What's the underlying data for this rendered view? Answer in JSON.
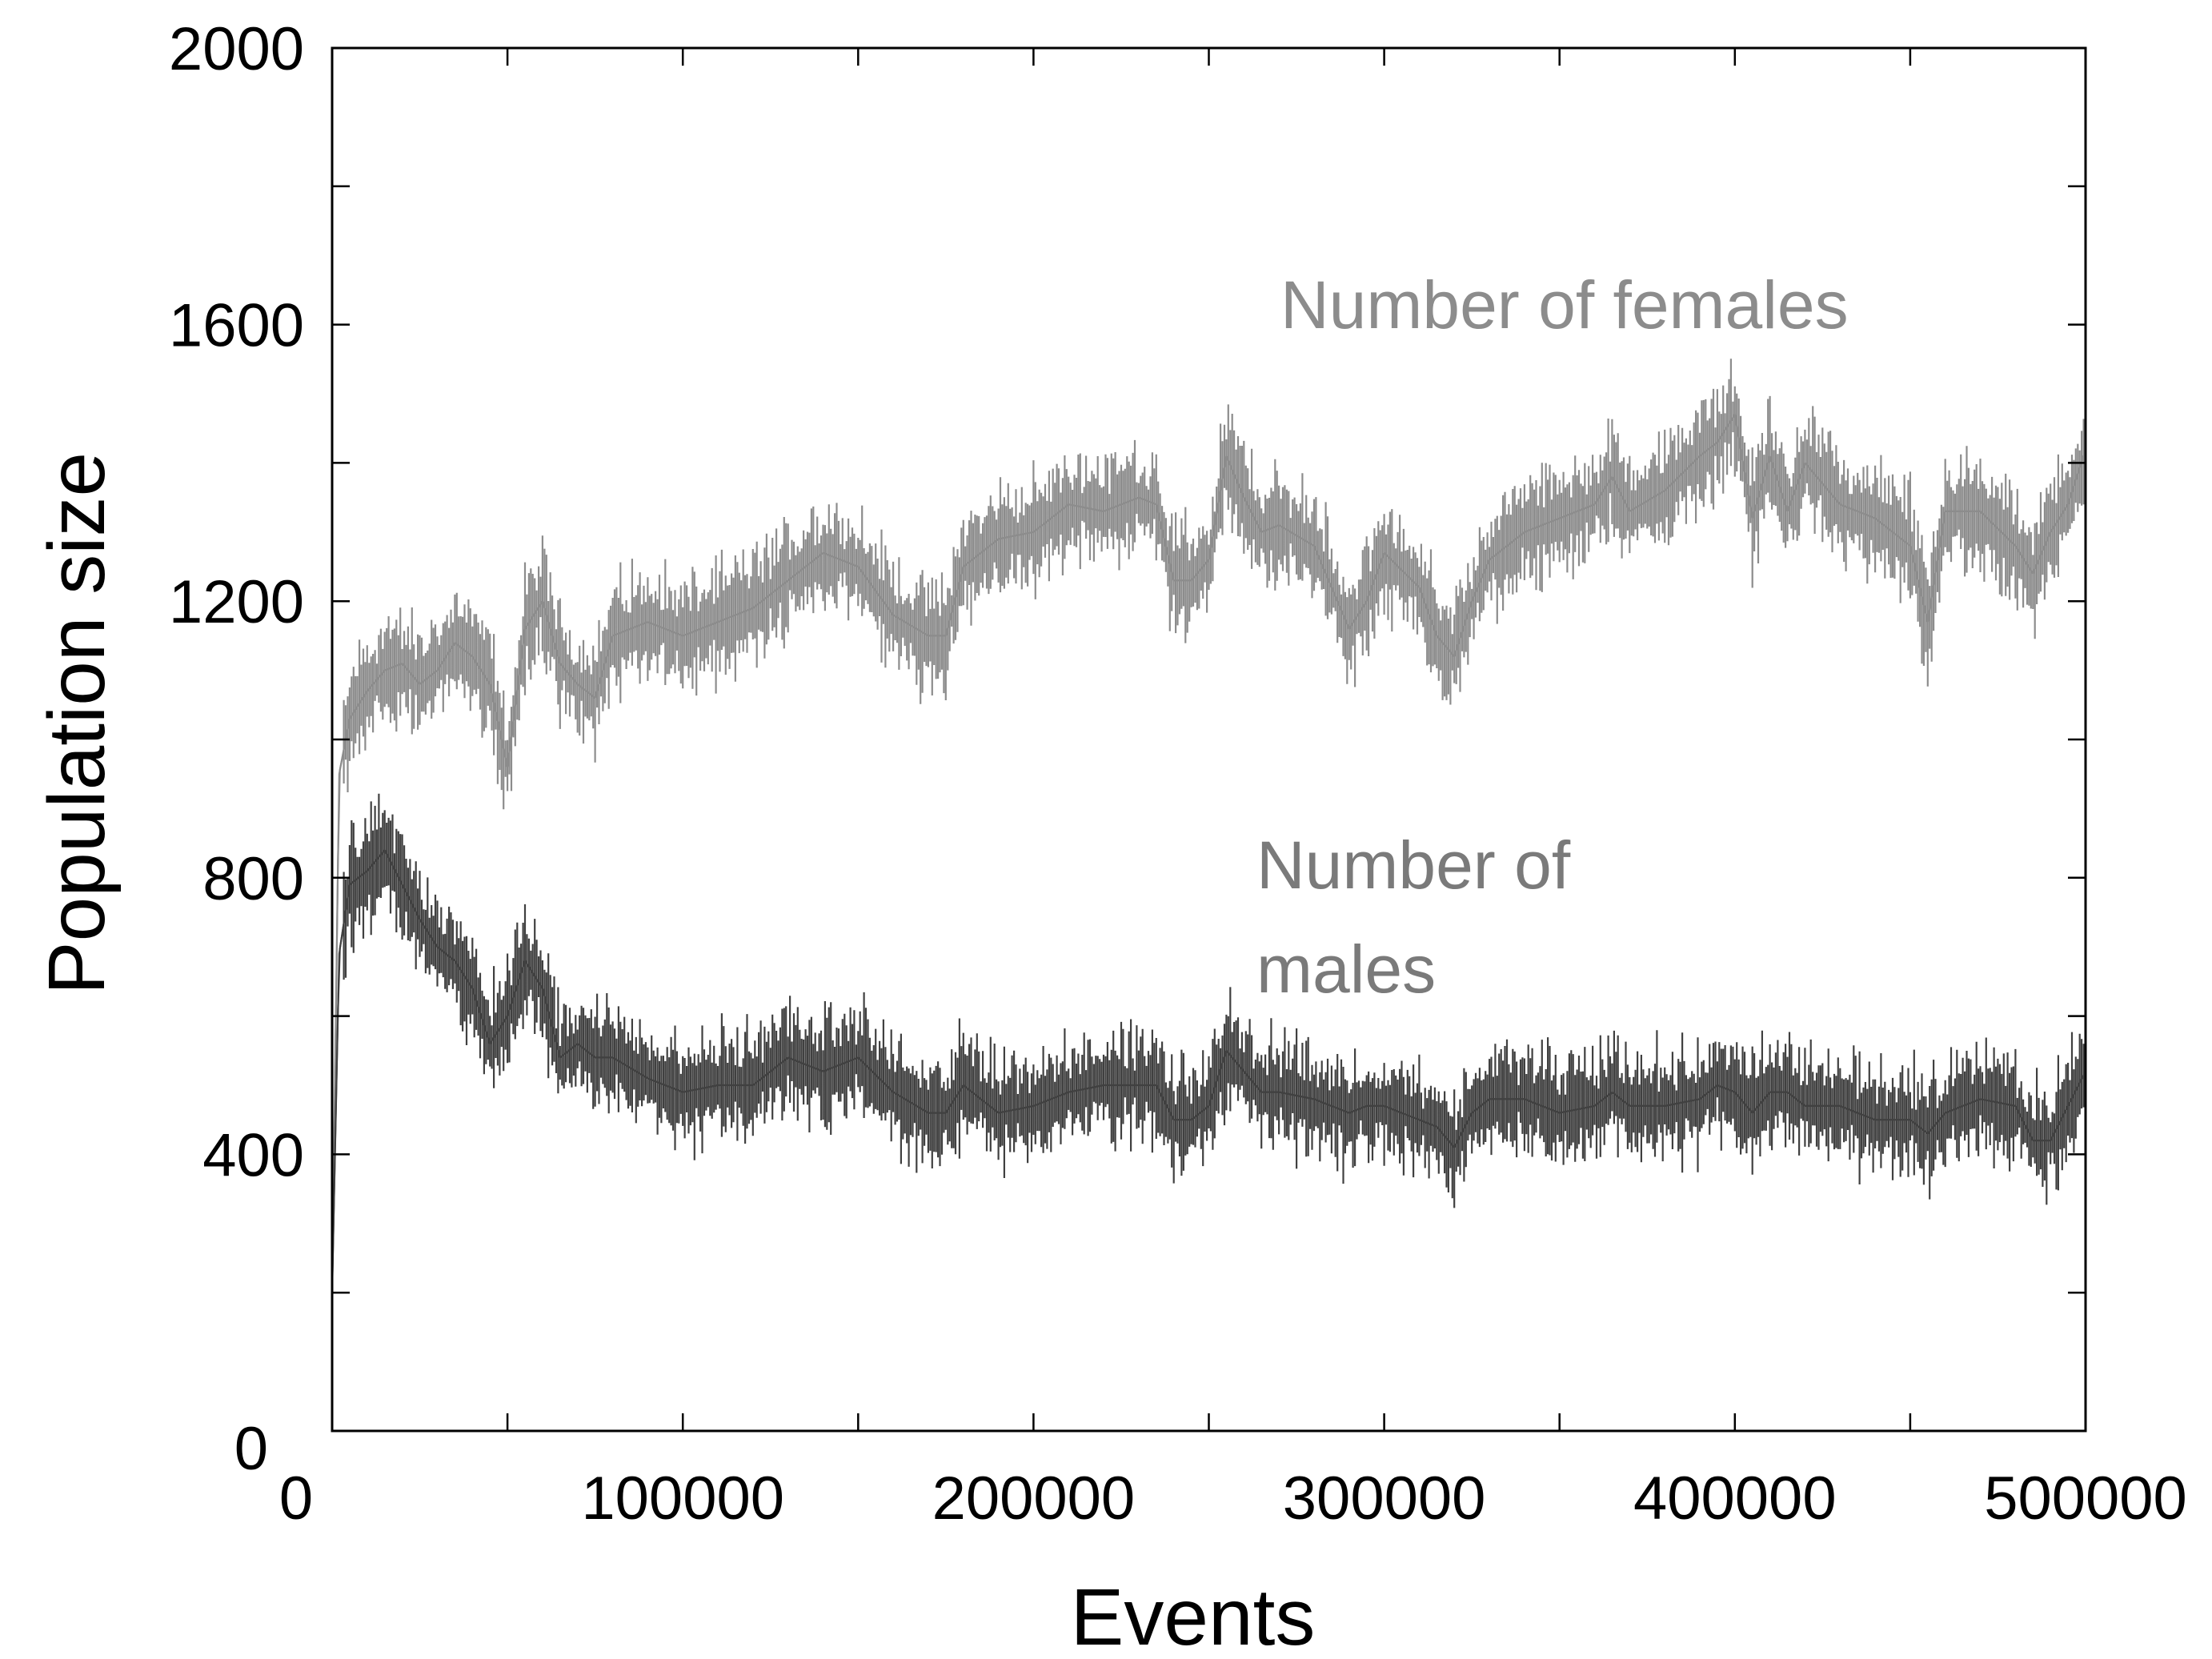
{
  "chart_data": {
    "type": "line",
    "title": "",
    "xlabel": "Events",
    "ylabel": "Population size",
    "xlim": [
      0,
      500000
    ],
    "ylim": [
      0,
      2000
    ],
    "x_ticks": [
      0,
      100000,
      200000,
      300000,
      400000,
      500000
    ],
    "x_tick_labels": [
      "0",
      "100000",
      "200000",
      "300000",
      "400000",
      "500000"
    ],
    "y_ticks": [
      0,
      400,
      800,
      1200,
      1600,
      2000
    ],
    "y_tick_labels": [
      "0",
      "400",
      "800",
      "1200",
      "1600",
      "2000"
    ],
    "grid": false,
    "annotations": [
      {
        "text": "Number of females",
        "series": "females"
      },
      {
        "text": "Number of",
        "series": "males"
      },
      {
        "text": "males",
        "series": "males"
      }
    ],
    "series": [
      {
        "id": "females",
        "color": "#8c8c8c",
        "x": [
          0,
          2000,
          5000,
          10000,
          15000,
          20000,
          25000,
          30000,
          35000,
          40000,
          45000,
          50000,
          55000,
          60000,
          65000,
          70000,
          75000,
          80000,
          90000,
          100000,
          110000,
          120000,
          130000,
          140000,
          150000,
          160000,
          170000,
          175000,
          180000,
          190000,
          200000,
          210000,
          220000,
          230000,
          235000,
          240000,
          245000,
          250000,
          255000,
          260000,
          265000,
          270000,
          280000,
          290000,
          295000,
          300000,
          310000,
          315000,
          320000,
          325000,
          330000,
          340000,
          350000,
          360000,
          365000,
          370000,
          380000,
          390000,
          395000,
          400000,
          405000,
          410000,
          415000,
          420000,
          430000,
          440000,
          450000,
          455000,
          460000,
          470000,
          480000,
          485000,
          490000,
          495000,
          500000
        ],
        "y": [
          200,
          950,
          1030,
          1070,
          1100,
          1110,
          1080,
          1100,
          1140,
          1120,
          1080,
          960,
          1160,
          1200,
          1110,
          1080,
          1060,
          1150,
          1170,
          1150,
          1170,
          1190,
          1230,
          1270,
          1250,
          1180,
          1150,
          1150,
          1250,
          1290,
          1300,
          1340,
          1330,
          1350,
          1340,
          1230,
          1230,
          1260,
          1410,
          1350,
          1300,
          1310,
          1280,
          1160,
          1200,
          1270,
          1220,
          1150,
          1120,
          1200,
          1260,
          1300,
          1320,
          1340,
          1380,
          1330,
          1360,
          1410,
          1430,
          1470,
          1320,
          1410,
          1330,
          1400,
          1340,
          1320,
          1280,
          1170,
          1330,
          1330,
          1280,
          1240,
          1300,
          1340,
          1420
        ]
      },
      {
        "id": "males",
        "color": "#404040",
        "x": [
          0,
          2000,
          5000,
          10000,
          15000,
          20000,
          25000,
          30000,
          35000,
          40000,
          45000,
          50000,
          55000,
          60000,
          65000,
          70000,
          75000,
          80000,
          90000,
          100000,
          110000,
          120000,
          130000,
          140000,
          150000,
          160000,
          170000,
          175000,
          180000,
          190000,
          200000,
          210000,
          220000,
          230000,
          235000,
          240000,
          245000,
          250000,
          255000,
          260000,
          265000,
          270000,
          280000,
          290000,
          295000,
          300000,
          310000,
          315000,
          320000,
          325000,
          330000,
          340000,
          350000,
          360000,
          365000,
          370000,
          380000,
          390000,
          395000,
          400000,
          405000,
          410000,
          415000,
          420000,
          430000,
          440000,
          450000,
          455000,
          460000,
          470000,
          480000,
          485000,
          490000,
          495000,
          500000
        ],
        "y": [
          200,
          690,
          790,
          810,
          840,
          790,
          740,
          700,
          680,
          640,
          560,
          600,
          680,
          640,
          540,
          560,
          540,
          540,
          510,
          490,
          500,
          500,
          540,
          520,
          540,
          490,
          460,
          460,
          500,
          460,
          470,
          490,
          500,
          500,
          500,
          450,
          450,
          470,
          550,
          520,
          490,
          490,
          480,
          460,
          470,
          470,
          450,
          440,
          410,
          460,
          480,
          480,
          460,
          470,
          490,
          470,
          470,
          480,
          500,
          490,
          460,
          490,
          490,
          470,
          470,
          450,
          450,
          430,
          460,
          480,
          470,
          420,
          420,
          470,
          520
        ]
      }
    ]
  }
}
